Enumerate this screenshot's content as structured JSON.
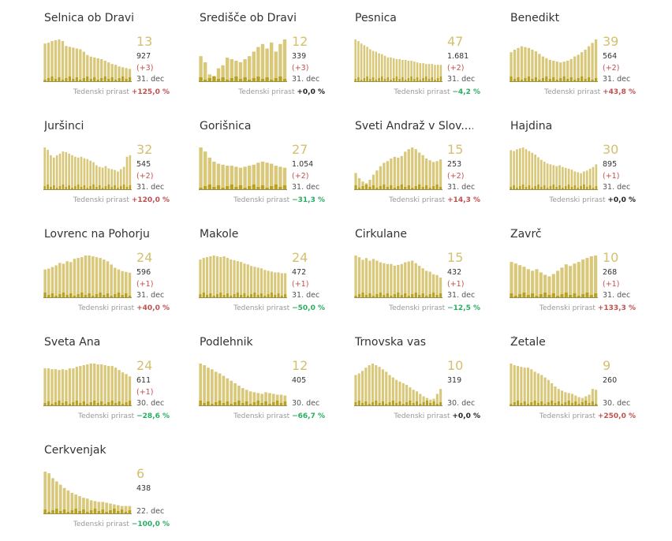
{
  "growth_label": "Tedenski prirast",
  "colors": {
    "bar": "#d9c87a",
    "inner": "#b8a21e",
    "big": "#d4c06e",
    "positive": "#c0504d",
    "negative": "#27ae60",
    "zero": "#222222"
  },
  "chart_data": [
    {
      "type": "bar",
      "title": "Selnica ob Dravi",
      "value": "13",
      "total": "927",
      "increase": "(+3)",
      "date": "31. dec",
      "growth": "+125,0 %",
      "trend": "pos",
      "values": [
        47,
        48,
        50,
        51,
        52,
        50,
        44,
        43,
        42,
        41,
        40,
        37,
        33,
        31,
        30,
        29,
        28,
        26,
        24,
        22,
        21,
        19,
        18,
        17,
        16
      ]
    },
    {
      "type": "bar",
      "title": "Središče ob Dravi",
      "value": "12",
      "total": "339",
      "increase": "(+3)",
      "date": "31. dec",
      "growth": "+0,0 %",
      "trend": "zero",
      "values": [
        17,
        13,
        5,
        4,
        9,
        11,
        16,
        15,
        14,
        13,
        15,
        17,
        20,
        23,
        25,
        22,
        26,
        20,
        25,
        28
      ]
    },
    {
      "type": "bar",
      "title": "Pesnica",
      "value": "47",
      "total": "1.681",
      "increase": "(+2)",
      "date": "31. dec",
      "growth": "−4,2 %",
      "trend": "neg",
      "values": [
        52,
        50,
        47,
        45,
        43,
        40,
        38,
        37,
        35,
        34,
        32,
        30,
        30,
        29,
        28,
        28,
        27,
        27,
        26,
        26,
        25,
        24,
        23,
        23,
        22,
        22,
        22,
        21,
        21,
        21
      ]
    },
    {
      "type": "bar",
      "title": "Benedikt",
      "value": "39",
      "total": "564",
      "increase": "(+2)",
      "date": "31. dec",
      "growth": "+43,8 %",
      "trend": "pos",
      "values": [
        35,
        38,
        40,
        42,
        41,
        40,
        38,
        36,
        33,
        30,
        28,
        26,
        25,
        24,
        23,
        24,
        25,
        27,
        30,
        32,
        35,
        38,
        42,
        46,
        50
      ]
    },
    {
      "type": "bar",
      "title": "Juršinci",
      "value": "32",
      "total": "545",
      "increase": "(+2)",
      "date": "31. dec",
      "growth": "+120,0 %",
      "trend": "pos",
      "values": [
        55,
        52,
        45,
        42,
        45,
        47,
        50,
        49,
        47,
        45,
        43,
        42,
        43,
        41,
        40,
        38,
        36,
        32,
        30,
        29,
        31,
        28,
        27,
        26,
        24,
        27,
        30,
        43,
        45
      ]
    },
    {
      "type": "bar",
      "title": "Gorišnica",
      "value": "27",
      "total": "1.054",
      "increase": "(+2)",
      "date": "31. dec",
      "growth": "−31,3 %",
      "trend": "neg",
      "values": [
        42,
        38,
        32,
        28,
        26,
        25,
        24,
        24,
        23,
        22,
        23,
        24,
        25,
        27,
        28,
        27,
        26,
        24,
        23,
        22
      ]
    },
    {
      "type": "bar",
      "title": "Sveti Andraž v Slov....",
      "value": "15",
      "total": "253",
      "increase": "(+2)",
      "date": "31. dec",
      "growth": "+14,3 %",
      "trend": "pos",
      "values": [
        20,
        14,
        10,
        8,
        12,
        18,
        23,
        28,
        32,
        34,
        37,
        39,
        38,
        40,
        45,
        48,
        50,
        48,
        44,
        41,
        37,
        35,
        33,
        34,
        36
      ]
    },
    {
      "type": "bar",
      "title": "Hajdina",
      "value": "30",
      "total": "895",
      "increase": "(+1)",
      "date": "31. dec",
      "growth": "+0,0 %",
      "trend": "zero",
      "values": [
        45,
        44,
        46,
        47,
        48,
        46,
        44,
        42,
        40,
        37,
        34,
        32,
        30,
        29,
        28,
        27,
        28,
        26,
        25,
        24,
        23,
        21,
        20,
        19,
        21,
        22,
        24,
        26,
        29
      ]
    },
    {
      "type": "bar",
      "title": "Lovrenc na Pohorju",
      "value": "24",
      "total": "596",
      "increase": "(+1)",
      "date": "31. dec",
      "growth": "+40,0 %",
      "trend": "pos",
      "values": [
        35,
        36,
        38,
        40,
        43,
        42,
        45,
        44,
        48,
        49,
        50,
        52,
        52,
        51,
        50,
        49,
        47,
        45,
        41,
        37,
        35,
        33,
        32,
        31
      ]
    },
    {
      "type": "bar",
      "title": "Makole",
      "value": "24",
      "total": "472",
      "increase": "(+1)",
      "date": "31. dec",
      "growth": "−50,0 %",
      "trend": "neg",
      "values": [
        48,
        50,
        51,
        52,
        53,
        52,
        51,
        52,
        50,
        48,
        47,
        46,
        45,
        43,
        42,
        40,
        39,
        38,
        37,
        35,
        34,
        33,
        32,
        32,
        31,
        31
      ]
    },
    {
      "type": "bar",
      "title": "Cirkulane",
      "value": "15",
      "total": "432",
      "increase": "(+1)",
      "date": "31. dec",
      "growth": "−12,5 %",
      "trend": "neg",
      "values": [
        50,
        48,
        45,
        47,
        44,
        46,
        44,
        42,
        41,
        40,
        40,
        38,
        39,
        40,
        42,
        43,
        44,
        41,
        38,
        35,
        32,
        31,
        28,
        27,
        24
      ]
    },
    {
      "type": "bar",
      "title": "Zavrč",
      "value": "10",
      "total": "268",
      "increase": "(+1)",
      "date": "31. dec",
      "growth": "+133,3 %",
      "trend": "pos",
      "values": [
        45,
        43,
        41,
        39,
        36,
        34,
        36,
        32,
        29,
        27,
        30,
        34,
        38,
        42,
        40,
        43,
        45,
        48,
        50,
        52,
        53
      ]
    },
    {
      "type": "bar",
      "title": "Sveta Ana",
      "value": "24",
      "total": "611",
      "increase": "(+1)",
      "date": "30. dec",
      "growth": "−28,6 %",
      "trend": "neg",
      "values": [
        47,
        47,
        46,
        46,
        45,
        46,
        45,
        47,
        47,
        49,
        50,
        51,
        52,
        53,
        53,
        52,
        52,
        51,
        50,
        50,
        48,
        45,
        42,
        40,
        37
      ]
    },
    {
      "type": "bar",
      "title": "Podlehnik",
      "value": "12",
      "total": "405",
      "increase": "",
      "date": "30. dec",
      "growth": "−66,7 %",
      "trend": "neg",
      "values": [
        52,
        50,
        47,
        45,
        42,
        40,
        37,
        34,
        31,
        28,
        25,
        22,
        20,
        18,
        17,
        16,
        15,
        17,
        16,
        15,
        14,
        14,
        13
      ]
    },
    {
      "type": "bar",
      "title": "Trnovska vas",
      "value": "10",
      "total": "319",
      "increase": "",
      "date": "30. dec",
      "growth": "+0,0 %",
      "trend": "zero",
      "values": [
        38,
        40,
        43,
        47,
        50,
        52,
        50,
        48,
        45,
        42,
        38,
        35,
        32,
        30,
        28,
        26,
        23,
        20,
        18,
        15,
        12,
        10,
        8,
        9,
        15,
        21
      ]
    },
    {
      "type": "bar",
      "title": "Žetale",
      "value": "9",
      "total": "260",
      "increase": "",
      "date": "30. dec",
      "growth": "+250,0 %",
      "trend": "pos",
      "values": [
        52,
        50,
        49,
        48,
        47,
        47,
        45,
        42,
        40,
        38,
        35,
        32,
        28,
        24,
        21,
        19,
        17,
        16,
        15,
        13,
        11,
        10,
        12,
        14,
        21,
        20
      ]
    },
    {
      "type": "bar",
      "title": "Cerkvenjak",
      "value": "6",
      "total": "438",
      "increase": "",
      "date": "22. dec",
      "growth": "−100,0 %",
      "trend": "neg",
      "values": [
        52,
        50,
        44,
        40,
        36,
        32,
        29,
        26,
        24,
        22,
        20,
        19,
        17,
        16,
        15,
        15,
        14,
        13,
        12,
        11,
        10,
        10,
        10
      ]
    }
  ]
}
